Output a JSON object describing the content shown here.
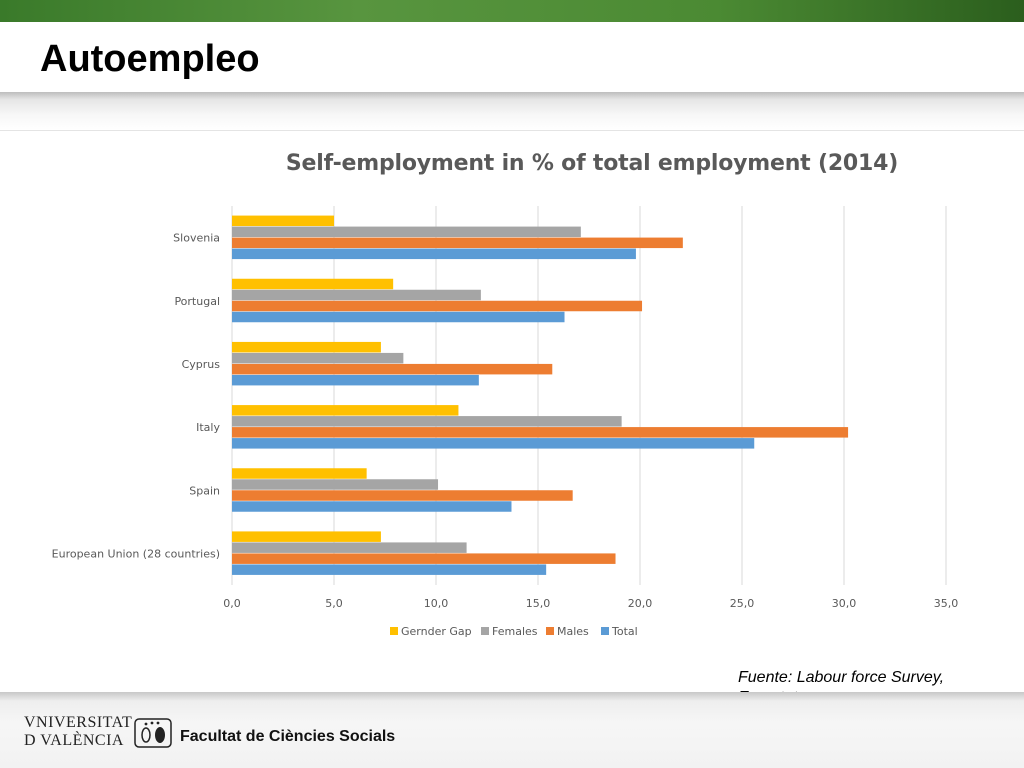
{
  "slide": {
    "title": "Autoempleo",
    "source": "Fuente: Labour force Survey, Eurostat"
  },
  "footer": {
    "university_line1": "VNIVERSITAT",
    "university_line2": "D VALÈNCIA",
    "faculty": "Facultat de Ciències Socials"
  },
  "colors": {
    "gender_gap": "#FFC000",
    "females": "#A5A5A5",
    "males": "#ED7D31",
    "total": "#5B9BD5",
    "gridline": "#D9D9D9",
    "text": "#595959"
  },
  "chart_data": {
    "type": "bar",
    "orientation": "horizontal",
    "title": "Self-employment in % of total employment (2014)",
    "categories": [
      "Slovenia",
      "Portugal",
      "Cyprus",
      "Italy",
      "Spain",
      "European Union (28 countries)"
    ],
    "series": [
      {
        "name": "Gernder Gap",
        "color": "#FFC000",
        "values": [
          5.0,
          7.9,
          7.3,
          11.1,
          6.6,
          7.3
        ]
      },
      {
        "name": "Females",
        "color": "#A5A5A5",
        "values": [
          17.1,
          12.2,
          8.4,
          19.1,
          10.1,
          11.5
        ]
      },
      {
        "name": "Males",
        "color": "#ED7D31",
        "values": [
          22.1,
          20.1,
          15.7,
          30.2,
          16.7,
          18.8
        ]
      },
      {
        "name": "Total",
        "color": "#5B9BD5",
        "values": [
          19.8,
          16.3,
          12.1,
          25.6,
          13.7,
          15.4
        ]
      }
    ],
    "xlim": [
      0,
      35
    ],
    "xticks": [
      "0,0",
      "5,0",
      "10,0",
      "15,0",
      "20,0",
      "25,0",
      "30,0",
      "35,0"
    ],
    "grid": true,
    "legend_position": "bottom"
  }
}
